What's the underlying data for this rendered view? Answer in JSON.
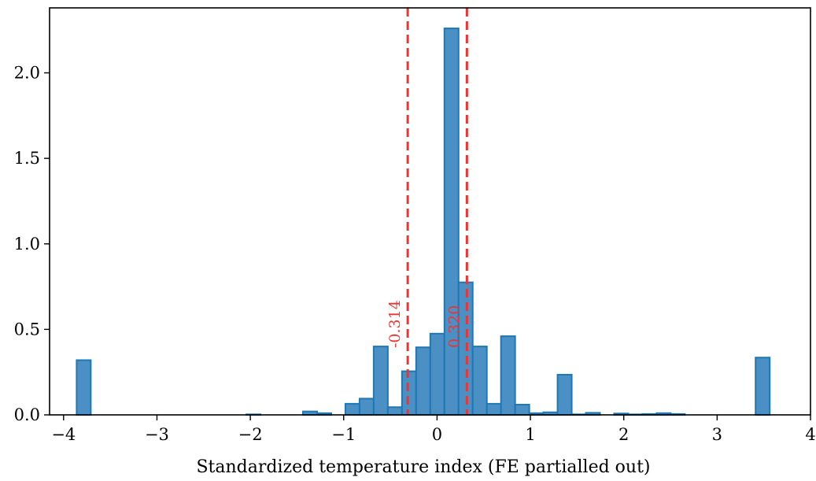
{
  "chart_data": {
    "type": "bar",
    "title": "",
    "xlabel": "Standardized temperature index (FE partialled out)",
    "ylabel": "",
    "xlim": [
      -4.15,
      4.0
    ],
    "ylim": [
      0,
      2.38
    ],
    "xticks": [
      -4,
      -3,
      -2,
      -1,
      0,
      1,
      2,
      3,
      4
    ],
    "xtick_labels": [
      "−4",
      "−3",
      "−2",
      "−1",
      "0",
      "1",
      "2",
      "3",
      "4"
    ],
    "yticks": [
      0.0,
      0.5,
      1.0,
      1.5,
      2.0
    ],
    "ytick_labels": [
      "0.0",
      "0.5",
      "1.0",
      "1.5",
      "2.0"
    ],
    "grid": false,
    "bin_start": -3.86,
    "bin_width": 0.1515,
    "values": [
      0.32,
      0.0,
      0.0,
      0.0,
      0.0,
      0.0,
      0.0,
      0.0,
      0.0,
      0.0,
      0.0,
      0.0,
      0.003,
      0.0,
      0.0,
      0.0,
      0.02,
      0.01,
      0.0,
      0.065,
      0.095,
      0.4,
      0.045,
      0.255,
      0.395,
      0.475,
      2.26,
      0.775,
      0.4,
      0.065,
      0.46,
      0.06,
      0.01,
      0.015,
      0.235,
      0.003,
      0.012,
      0.0,
      0.008,
      0.003,
      0.005,
      0.01,
      0.005,
      0.0,
      0.0,
      0.0,
      0.0,
      0.0,
      0.335
    ],
    "bar_color": "#4a90c4",
    "bar_edge_color": "#1f77b4",
    "reference_lines": [
      {
        "x": -0.314,
        "label": "-0.314",
        "color": "#ee3333"
      },
      {
        "x": 0.32,
        "label": "0.320",
        "color": "#ee3333"
      }
    ]
  }
}
